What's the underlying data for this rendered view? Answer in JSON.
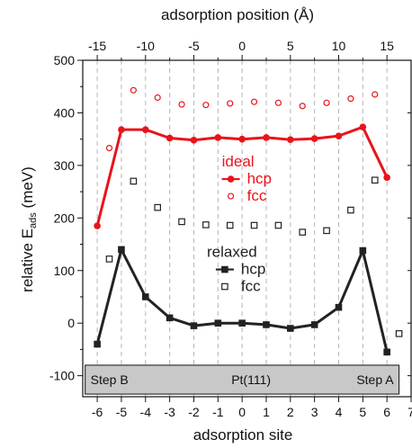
{
  "chart_data": {
    "type": "scatter",
    "xlabel": "adsorption site",
    "ylabel_main": "relative E",
    "ylabel_sub": "ads",
    "ylabel_unit": " (meV)",
    "top_xlabel": "adsorption position (Å)",
    "xlim": [
      -6.6,
      7
    ],
    "ylim": [
      -140,
      500
    ],
    "top_xlim": [
      -16.5,
      17.5
    ],
    "x_ticks": [
      -6,
      -5,
      -4,
      -3,
      -2,
      -1,
      0,
      1,
      2,
      3,
      4,
      5,
      6,
      7
    ],
    "x_tick_labels": [
      "-6",
      "-5",
      "-4",
      "-3",
      "-2",
      "-1",
      "0",
      "1",
      "2",
      "3",
      "4",
      "5",
      "6",
      "7"
    ],
    "y_ticks": [
      -100,
      0,
      100,
      200,
      300,
      400,
      500
    ],
    "y_tick_labels": [
      "-100",
      "0",
      "100",
      "200",
      "300",
      "400",
      "500"
    ],
    "top_x_ticks": [
      -15,
      -10,
      -5,
      0,
      5,
      10,
      15
    ],
    "top_x_tick_labels": [
      "-15",
      "-10",
      "-5",
      "0",
      "5",
      "10",
      "15"
    ],
    "grid": "vertical dashed at integer sites",
    "series": [
      {
        "name": "hcp",
        "group": "ideal",
        "color": "#e8141c",
        "marker": "filled-circle",
        "line": true,
        "points": [
          [
            -6,
            185
          ],
          [
            -5,
            368
          ],
          [
            -4,
            368
          ],
          [
            -3,
            352
          ],
          [
            -2,
            348
          ],
          [
            -1,
            353
          ],
          [
            0,
            350
          ],
          [
            1,
            353
          ],
          [
            2,
            349
          ],
          [
            3,
            351
          ],
          [
            4,
            356
          ],
          [
            5,
            373
          ],
          [
            6,
            277
          ]
        ]
      },
      {
        "name": "fcc",
        "group": "ideal",
        "color": "#e8141c",
        "marker": "open-circle",
        "line": false,
        "points": [
          [
            -5.5,
            333
          ],
          [
            -4.5,
            443
          ],
          [
            -3.5,
            429
          ],
          [
            -2.5,
            416
          ],
          [
            -1.5,
            415
          ],
          [
            -0.5,
            418
          ],
          [
            0.5,
            421
          ],
          [
            1.5,
            419
          ],
          [
            2.5,
            413
          ],
          [
            3.5,
            419
          ],
          [
            4.5,
            427
          ],
          [
            5.5,
            435
          ]
        ]
      },
      {
        "name": "hcp",
        "group": "relaxed",
        "color": "#222222",
        "marker": "filled-square",
        "line": true,
        "points": [
          [
            -6,
            -40
          ],
          [
            -5,
            140
          ],
          [
            -4,
            50
          ],
          [
            -3,
            10
          ],
          [
            -2,
            -5
          ],
          [
            -1,
            0
          ],
          [
            0,
            0
          ],
          [
            1,
            -3
          ],
          [
            2,
            -10
          ],
          [
            3,
            -3
          ],
          [
            4,
            30
          ],
          [
            5,
            138
          ],
          [
            6,
            -55
          ]
        ]
      },
      {
        "name": "fcc",
        "group": "relaxed",
        "color": "#222222",
        "marker": "open-square",
        "line": false,
        "points": [
          [
            -5.5,
            122
          ],
          [
            -4.5,
            270
          ],
          [
            -3.5,
            220
          ],
          [
            -2.5,
            193
          ],
          [
            -1.5,
            187
          ],
          [
            -0.5,
            186
          ],
          [
            0.5,
            186
          ],
          [
            1.5,
            186
          ],
          [
            2.5,
            173
          ],
          [
            3.5,
            176
          ],
          [
            4.5,
            215
          ],
          [
            5.5,
            272
          ],
          [
            6.5,
            -20
          ]
        ]
      }
    ],
    "legends": [
      {
        "title": "ideal",
        "color": "#e8141c",
        "entries": [
          {
            "label": "hcp",
            "marker": "filled-circle"
          },
          {
            "label": "fcc",
            "marker": "open-circle"
          }
        ]
      },
      {
        "title": "relaxed",
        "color": "#222222",
        "entries": [
          {
            "label": "hcp",
            "marker": "filled-square"
          },
          {
            "label": "fcc",
            "marker": "open-square"
          }
        ]
      }
    ],
    "surface_bar": {
      "y_range": [
        -135,
        -80
      ],
      "x_range": [
        -6.5,
        6.5
      ],
      "left_label": "Step B",
      "center_label": "Pt(111)",
      "right_label": "Step A",
      "fill": "#c8c8c8"
    }
  }
}
